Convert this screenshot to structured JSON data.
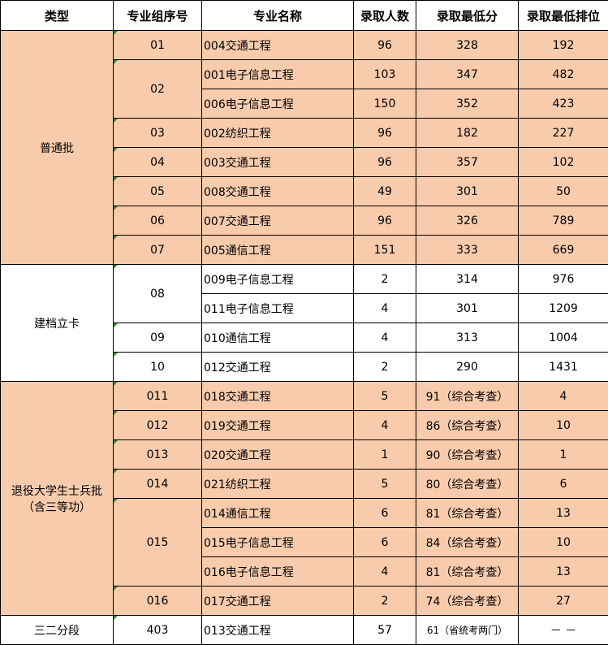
{
  "headers": [
    "类型",
    "专业组序号",
    "专业名称",
    "录取人数",
    "录取最低分",
    "录取最低排位"
  ],
  "colors": {
    "peach": "#f8cbad",
    "white": "#ffffff",
    "marker": "#2e8b2e"
  },
  "sections": [
    {
      "type": "普通批",
      "shade": "peach",
      "groups": [
        {
          "code": "01",
          "rows": [
            [
              "004交通工程",
              "96",
              "328",
              "192"
            ]
          ]
        },
        {
          "code": "02",
          "rows": [
            [
              "001电子信息工程",
              "103",
              "347",
              "482"
            ],
            [
              "006电子信息工程",
              "150",
              "352",
              "423"
            ]
          ]
        },
        {
          "code": "03",
          "rows": [
            [
              "002纺织工程",
              "96",
              "182",
              "227"
            ]
          ]
        },
        {
          "code": "04",
          "rows": [
            [
              "003交通工程",
              "96",
              "357",
              "102"
            ]
          ]
        },
        {
          "code": "05",
          "rows": [
            [
              "008交通工程",
              "49",
              "301",
              "50"
            ]
          ]
        },
        {
          "code": "06",
          "rows": [
            [
              "007交通工程",
              "96",
              "326",
              "789"
            ]
          ]
        },
        {
          "code": "07",
          "rows": [
            [
              "005通信工程",
              "151",
              "333",
              "669"
            ]
          ]
        }
      ]
    },
    {
      "type": "建档立卡",
      "shade": "white",
      "groups": [
        {
          "code": "08",
          "rows": [
            [
              "009电子信息工程",
              "2",
              "314",
              "976"
            ],
            [
              "011电子信息工程",
              "4",
              "301",
              "1209"
            ]
          ]
        },
        {
          "code": "09",
          "rows": [
            [
              "010通信工程",
              "4",
              "313",
              "1004"
            ]
          ]
        },
        {
          "code": "10",
          "rows": [
            [
              "012交通工程",
              "2",
              "290",
              "1431"
            ]
          ]
        }
      ]
    },
    {
      "type": "退役大学生士兵批\n（含三等功）",
      "shade": "peach",
      "groups": [
        {
          "code": "011",
          "rows": [
            [
              "018交通工程",
              "5",
              "91（综合考查）",
              "4"
            ]
          ]
        },
        {
          "code": "012",
          "rows": [
            [
              "019交通工程",
              "4",
              "86（综合考查）",
              "10"
            ]
          ]
        },
        {
          "code": "013",
          "rows": [
            [
              "020交通工程",
              "1",
              "90（综合考查）",
              "1"
            ]
          ]
        },
        {
          "code": "014",
          "rows": [
            [
              "021纺织工程",
              "5",
              "80（综合考查）",
              "6"
            ]
          ]
        },
        {
          "code": "015",
          "rows": [
            [
              "014通信工程",
              "6",
              "81（综合考查）",
              "13"
            ],
            [
              "015电子信息工程",
              "6",
              "84（综合考查）",
              "10"
            ],
            [
              "016电子信息工程",
              "4",
              "81（综合考查）",
              "13"
            ]
          ]
        },
        {
          "code": "016",
          "rows": [
            [
              "017交通工程",
              "2",
              "74（综合考查）",
              "27"
            ]
          ]
        }
      ]
    },
    {
      "type": "三二分段",
      "shade": "white",
      "groups": [
        {
          "code": "403",
          "rows": [
            [
              "013交通工程",
              "57",
              "61（省统考两门）",
              "－ －"
            ]
          ]
        }
      ]
    }
  ]
}
